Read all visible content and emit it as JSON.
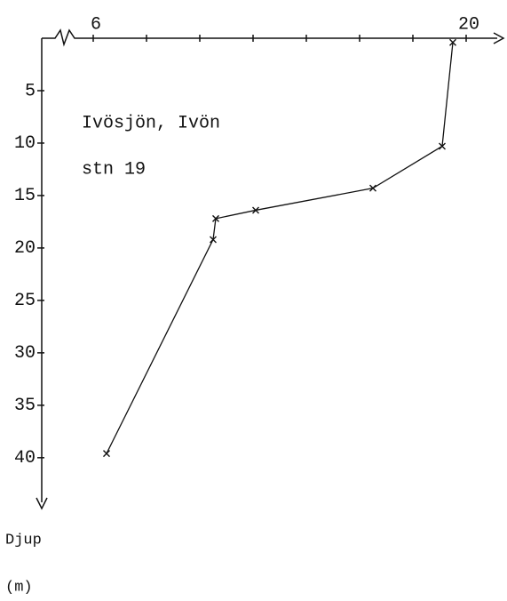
{
  "chart_data": {
    "type": "line",
    "annotations": [
      "Ivösjön, Ivön",
      "stn 19"
    ],
    "ylabel": [
      "Djup",
      "(m)"
    ],
    "x": [
      19.5,
      19.1,
      16.5,
      12.1,
      10.6,
      10.5,
      6.5
    ],
    "values": [
      0.4,
      10.3,
      14.3,
      16.4,
      17.2,
      19.2,
      39.6
    ],
    "color": "#111111",
    "xlim": [
      4,
      21.4
    ],
    "xticks": [
      6,
      20
    ],
    "xminor_ticks": [
      8,
      10,
      12,
      14,
      16,
      18
    ],
    "ylim": [
      0,
      44
    ],
    "yticks": [
      5,
      10,
      15,
      20,
      25,
      30,
      35,
      40
    ],
    "y_inverted": true
  }
}
